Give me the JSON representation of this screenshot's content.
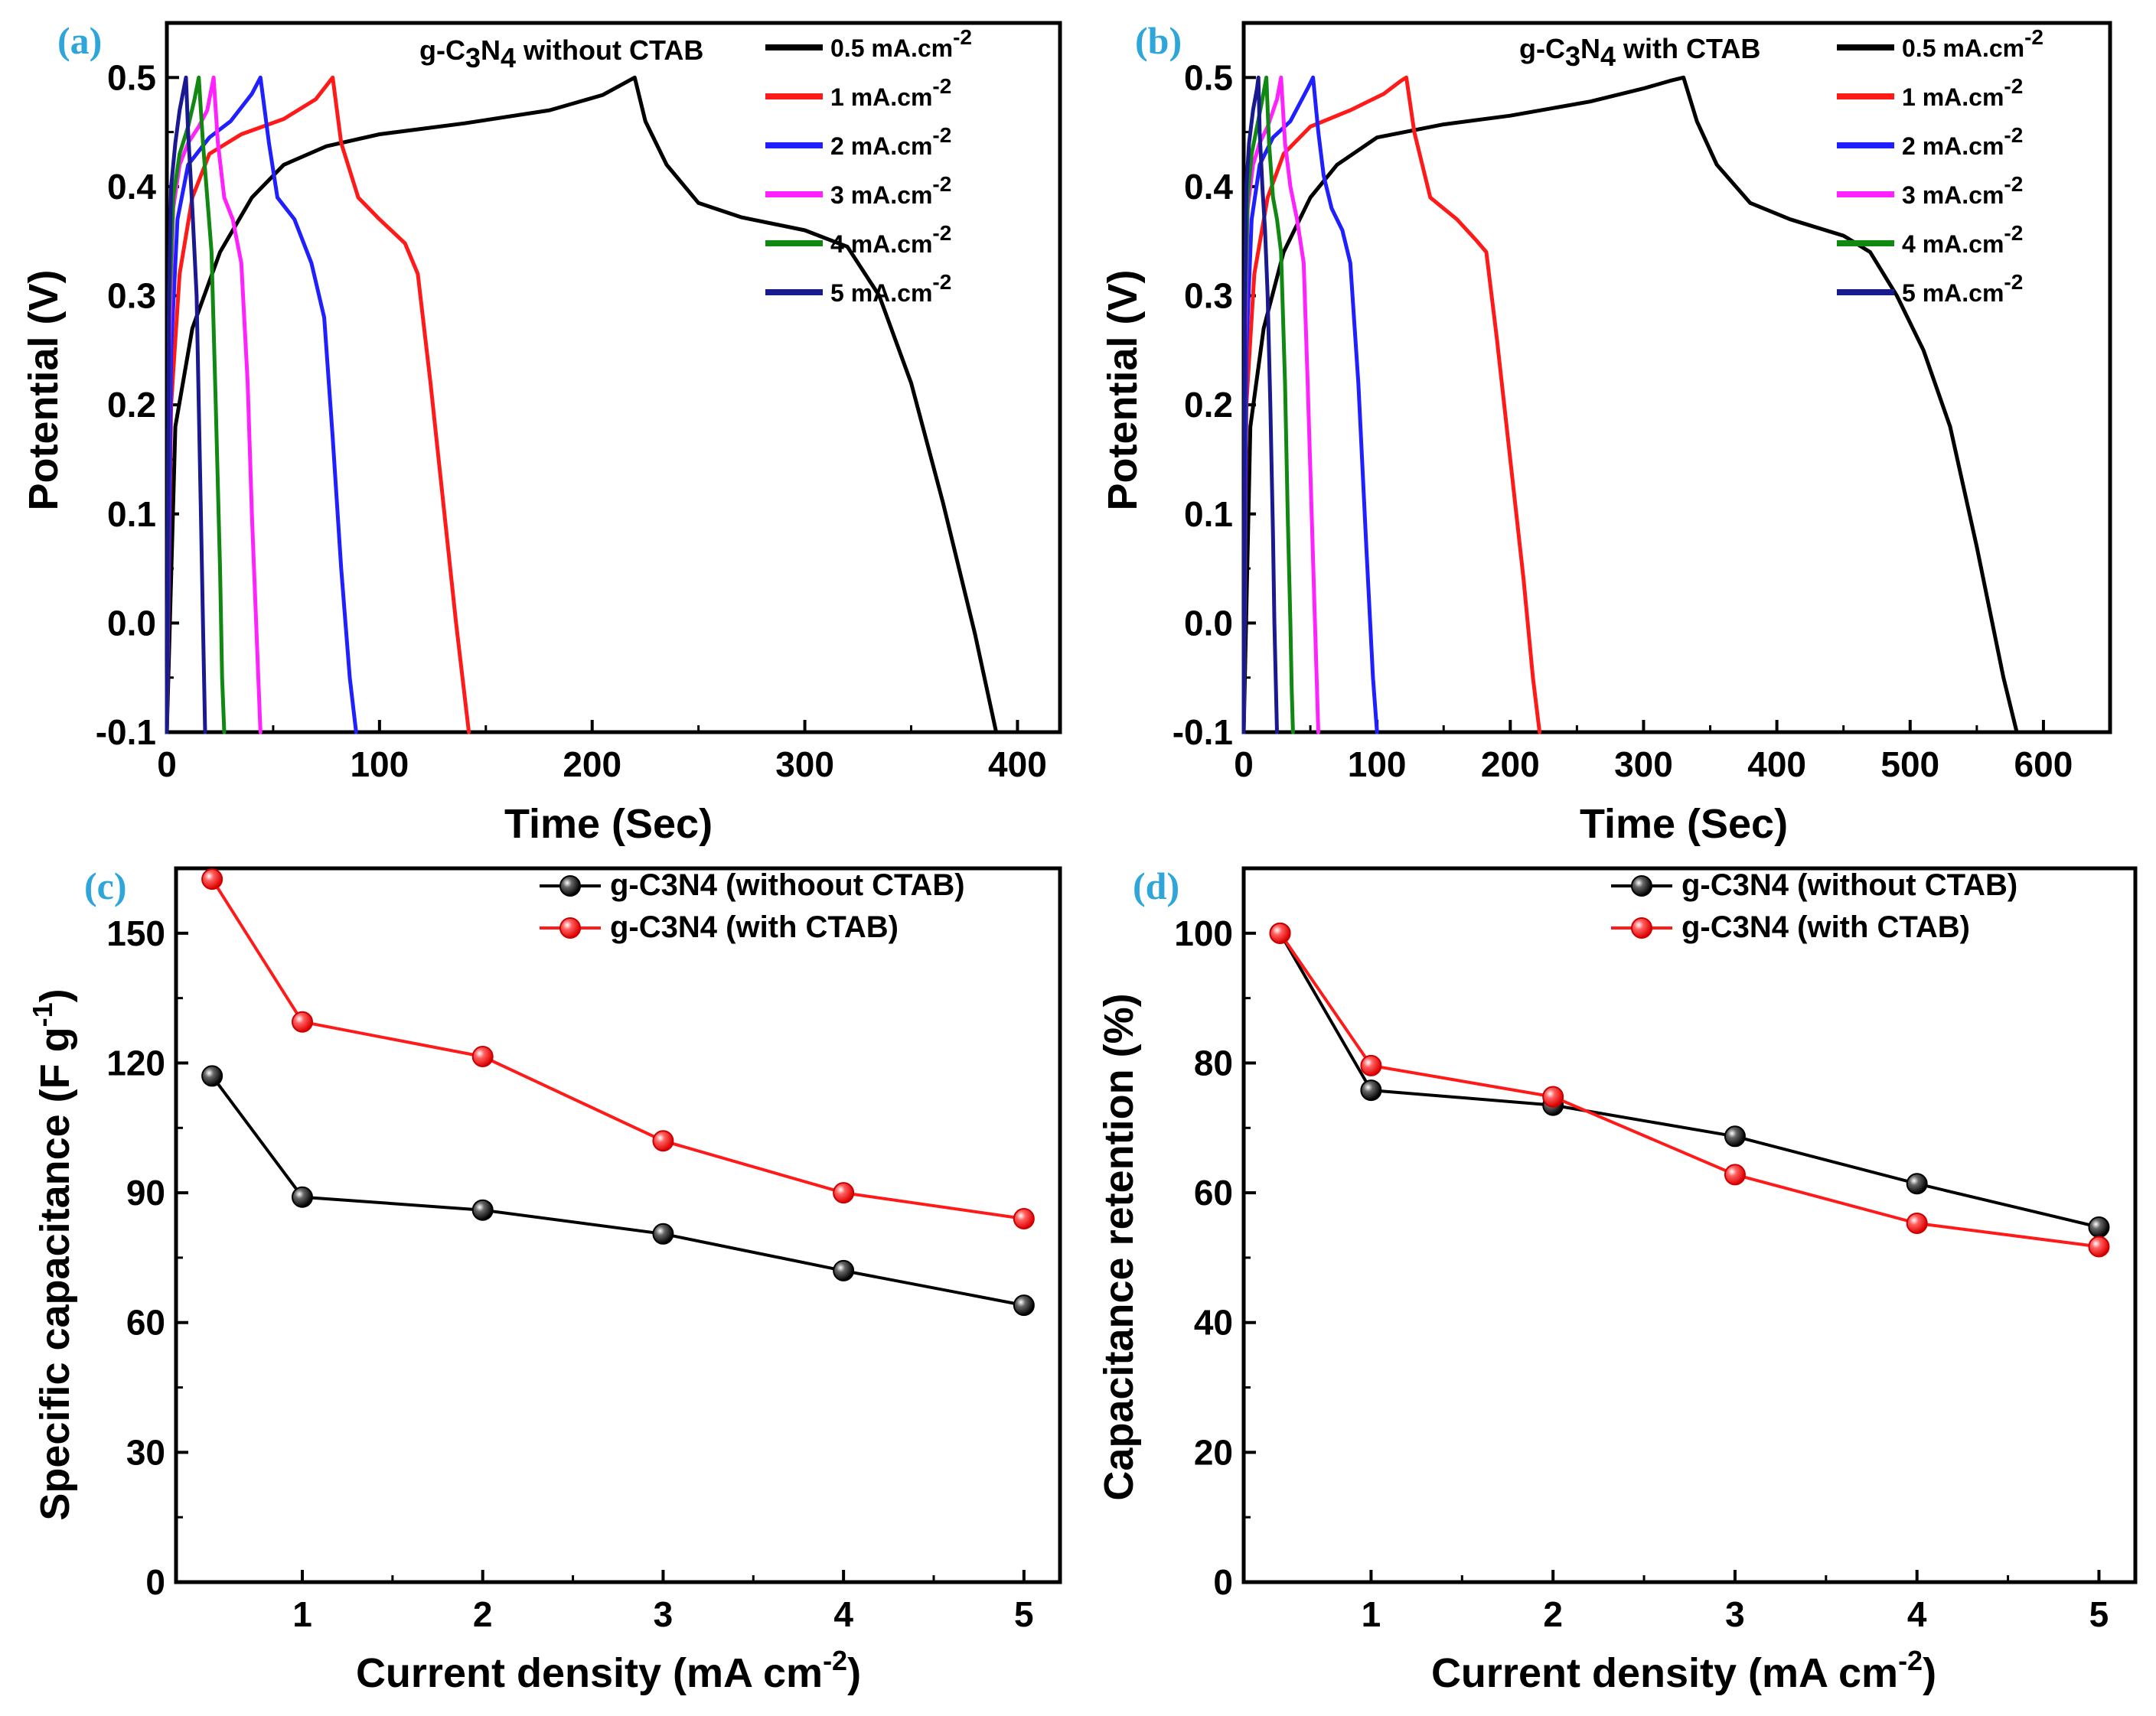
{
  "chart_data": [
    {
      "panel": "(a)",
      "type": "line",
      "annotation": {
        "prefix": "g-C",
        "sub1": "3",
        "mid": "N",
        "sub2": "4",
        "suffix": " without CTAB"
      },
      "xlabel": "Time (Sec)",
      "ylabel": "Potential (V)",
      "xlim": [
        0,
        420
      ],
      "ylim": [
        -0.1,
        0.55
      ],
      "xticks": [
        0,
        100,
        200,
        300,
        400
      ],
      "yticks": [
        -0.1,
        0.0,
        0.1,
        0.2,
        0.3,
        0.4,
        0.5
      ],
      "series": [
        {
          "name": "0.5 mA.cm",
          "sup": "-2",
          "color": "#000000",
          "x": [
            0,
            4,
            12,
            25,
            40,
            55,
            75,
            100,
            140,
            180,
            205,
            220,
            225,
            235,
            250,
            270,
            300,
            320,
            335,
            350,
            365,
            380,
            390
          ],
          "y": [
            -0.1,
            0.18,
            0.27,
            0.34,
            0.39,
            0.42,
            0.437,
            0.448,
            0.458,
            0.47,
            0.484,
            0.5,
            0.46,
            0.42,
            0.385,
            0.372,
            0.36,
            0.345,
            0.3,
            0.22,
            0.11,
            -0.01,
            -0.1
          ]
        },
        {
          "name": "1 mA.cm",
          "sup": "-2",
          "color": "#ff1a1a",
          "x": [
            0,
            2,
            6,
            12,
            20,
            35,
            55,
            70,
            78,
            82,
            90,
            100,
            112,
            118,
            124,
            130,
            136,
            142
          ],
          "y": [
            -0.1,
            0.2,
            0.32,
            0.39,
            0.43,
            0.448,
            0.462,
            0.48,
            0.5,
            0.44,
            0.39,
            0.37,
            0.348,
            0.32,
            0.22,
            0.11,
            0.0,
            -0.1
          ]
        },
        {
          "name": "2 mA.cm",
          "sup": "-2",
          "color": "#1f1fff",
          "x": [
            0,
            2,
            5,
            10,
            20,
            30,
            40,
            44,
            48,
            52,
            60,
            68,
            74,
            78,
            82,
            86,
            89
          ],
          "y": [
            -0.1,
            0.25,
            0.37,
            0.42,
            0.445,
            0.46,
            0.485,
            0.5,
            0.44,
            0.39,
            0.37,
            0.33,
            0.28,
            0.17,
            0.05,
            -0.05,
            -0.1
          ]
        },
        {
          "name": "3 mA.cm",
          "sup": "-2",
          "color": "#ff22ff",
          "x": [
            0,
            1,
            3,
            6,
            10,
            15,
            19,
            22,
            24,
            27,
            31,
            35,
            38,
            40,
            42,
            44
          ],
          "y": [
            -0.1,
            0.25,
            0.38,
            0.42,
            0.44,
            0.455,
            0.47,
            0.5,
            0.44,
            0.39,
            0.37,
            0.33,
            0.22,
            0.1,
            0.0,
            -0.1
          ]
        },
        {
          "name": "4 mA.cm",
          "sup": "-2",
          "color": "#118811",
          "x": [
            0,
            1,
            3,
            6,
            10,
            13,
            15,
            17,
            19,
            21,
            23,
            25,
            26,
            27
          ],
          "y": [
            -0.1,
            0.28,
            0.39,
            0.43,
            0.455,
            0.48,
            0.5,
            0.44,
            0.39,
            0.34,
            0.2,
            0.05,
            -0.05,
            -0.1
          ]
        },
        {
          "name": "5 mA.cm",
          "sup": "-2",
          "color": "#1a1a90",
          "x": [
            0,
            1,
            2,
            4,
            6,
            8,
            9,
            10,
            12,
            14,
            15,
            16,
            17,
            18
          ],
          "y": [
            -0.1,
            0.3,
            0.4,
            0.44,
            0.47,
            0.49,
            0.5,
            0.45,
            0.38,
            0.3,
            0.2,
            0.1,
            0.0,
            -0.1
          ]
        }
      ]
    },
    {
      "panel": "(b)",
      "type": "line",
      "annotation": {
        "prefix": "g-C",
        "sub1": "3",
        "mid": "N",
        "sub2": "4",
        "suffix": " with CTAB"
      },
      "xlabel": "Time (Sec)",
      "ylabel": "Potential (V)",
      "xlim": [
        0,
        650
      ],
      "ylim": [
        -0.1,
        0.55
      ],
      "xticks": [
        0,
        100,
        200,
        300,
        400,
        500,
        600
      ],
      "yticks": [
        -0.1,
        0.0,
        0.1,
        0.2,
        0.3,
        0.4,
        0.5
      ],
      "series": [
        {
          "name": "0.5 mA.cm",
          "sup": "-2",
          "color": "#000000",
          "x": [
            0,
            5,
            15,
            30,
            50,
            70,
            100,
            150,
            200,
            260,
            300,
            320,
            330,
            340,
            355,
            380,
            410,
            450,
            470,
            490,
            510,
            530,
            550,
            570,
            580
          ],
          "y": [
            -0.1,
            0.18,
            0.27,
            0.34,
            0.39,
            0.42,
            0.445,
            0.457,
            0.465,
            0.478,
            0.49,
            0.497,
            0.5,
            0.46,
            0.42,
            0.385,
            0.37,
            0.355,
            0.34,
            0.3,
            0.25,
            0.18,
            0.07,
            -0.05,
            -0.1
          ]
        },
        {
          "name": "1 mA.cm",
          "sup": "-2",
          "color": "#ff1a1a",
          "x": [
            0,
            2,
            8,
            18,
            30,
            50,
            80,
            105,
            118,
            122,
            128,
            140,
            160,
            175,
            182,
            190,
            200,
            210,
            217,
            222
          ],
          "y": [
            -0.1,
            0.2,
            0.32,
            0.39,
            0.43,
            0.455,
            0.47,
            0.485,
            0.497,
            0.5,
            0.45,
            0.39,
            0.37,
            0.35,
            0.34,
            0.26,
            0.15,
            0.04,
            -0.05,
            -0.1
          ]
        },
        {
          "name": "2 mA.cm",
          "sup": "-2",
          "color": "#1f1fff",
          "x": [
            0,
            2,
            6,
            12,
            22,
            35,
            48,
            52,
            56,
            60,
            66,
            74,
            80,
            86,
            92,
            97,
            100
          ],
          "y": [
            -0.1,
            0.25,
            0.37,
            0.42,
            0.445,
            0.46,
            0.49,
            0.5,
            0.45,
            0.41,
            0.38,
            0.36,
            0.33,
            0.22,
            0.07,
            -0.05,
            -0.1
          ]
        },
        {
          "name": "3 mA.cm",
          "sup": "-2",
          "color": "#ff22ff",
          "x": [
            0,
            1,
            3,
            7,
            12,
            18,
            25,
            28,
            31,
            35,
            40,
            45,
            48,
            51,
            54,
            56
          ],
          "y": [
            -0.1,
            0.25,
            0.38,
            0.42,
            0.44,
            0.455,
            0.48,
            0.5,
            0.44,
            0.4,
            0.37,
            0.33,
            0.22,
            0.1,
            -0.02,
            -0.1
          ]
        },
        {
          "name": "4 mA.cm",
          "sup": "-2",
          "color": "#118811",
          "x": [
            0,
            1,
            3,
            6,
            10,
            14,
            17,
            19,
            22,
            25,
            28,
            31,
            33,
            35,
            36,
            37
          ],
          "y": [
            -0.1,
            0.28,
            0.39,
            0.43,
            0.455,
            0.48,
            0.5,
            0.44,
            0.39,
            0.37,
            0.34,
            0.22,
            0.1,
            0.0,
            -0.06,
            -0.1
          ]
        },
        {
          "name": "5 mA.cm",
          "sup": "-2",
          "color": "#1a1a90",
          "x": [
            0,
            1,
            2,
            4,
            7,
            10,
            11,
            12,
            14,
            16,
            18,
            20,
            22,
            23,
            24,
            25
          ],
          "y": [
            -0.1,
            0.3,
            0.4,
            0.44,
            0.47,
            0.49,
            0.5,
            0.45,
            0.4,
            0.36,
            0.3,
            0.2,
            0.08,
            0.0,
            -0.05,
            -0.1
          ]
        }
      ]
    },
    {
      "panel": "(c)",
      "type": "line",
      "xlabel": "Current density (mA cm",
      "xlabel_sup": "-2",
      "xlabel_end": ")",
      "ylabel": "Specific capacitance (F g",
      "ylabel_sup": "-1",
      "ylabel_end": ")",
      "xlim": [
        0.3,
        5.2
      ],
      "ylim": [
        0,
        165
      ],
      "xticks": [
        1,
        2,
        3,
        4,
        5
      ],
      "yticks": [
        0,
        30,
        60,
        90,
        120,
        150
      ],
      "categories_x": [
        0.5,
        1,
        2,
        3,
        4,
        5
      ],
      "series": [
        {
          "name": "g-C3N4 (withoout CTAB)",
          "color": "#000000",
          "values": [
            117,
            89,
            86,
            80.5,
            72,
            64
          ]
        },
        {
          "name": "g-C3N4 (with CTAB)",
          "color": "#ff1a1a",
          "values": [
            162.5,
            129.5,
            121.5,
            102,
            90,
            84
          ]
        }
      ]
    },
    {
      "panel": "(d)",
      "type": "line",
      "xlabel": "Current density (mA cm",
      "xlabel_sup": "-2",
      "xlabel_end": ")",
      "ylabel": "Capacitance retention (%)",
      "xlim": [
        0.3,
        5.2
      ],
      "ylim": [
        0,
        110
      ],
      "xticks": [
        1,
        2,
        3,
        4,
        5
      ],
      "yticks": [
        0,
        20,
        40,
        60,
        80,
        100
      ],
      "categories_x": [
        0.5,
        1,
        2,
        3,
        4,
        5
      ],
      "series": [
        {
          "name": "g-C3N4 (without CTAB)",
          "color": "#000000",
          "values": [
            100,
            75.8,
            73.5,
            68.7,
            61.4,
            54.7
          ]
        },
        {
          "name": "g-C3N4 (with CTAB)",
          "color": "#ff1a1a",
          "values": [
            100,
            79.6,
            74.8,
            62.8,
            55.3,
            51.7
          ]
        }
      ]
    }
  ]
}
